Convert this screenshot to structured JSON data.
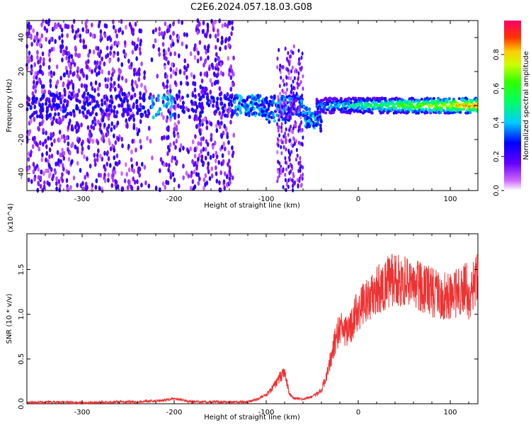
{
  "figure": {
    "title": "C2E6.2024.057.18.03.G08"
  },
  "chart_data": [
    {
      "type": "heatmap",
      "title": "",
      "xlabel": "Height of straight line (km)",
      "ylabel": "Frequency (Hz)",
      "xlim": [
        -360,
        130
      ],
      "ylim": [
        -50,
        50
      ],
      "xticks": [
        -300,
        -200,
        -100,
        0,
        100
      ],
      "yticks": [
        -40,
        -20,
        0,
        20,
        40
      ],
      "xtick_labels": [
        "-300",
        "-200",
        "-100",
        "0",
        "100"
      ],
      "ytick_labels": [
        "-40",
        "-20",
        "0",
        "20",
        "40"
      ],
      "colorbar": {
        "label": "Normalized spectral amplitude",
        "range": [
          0,
          1
        ],
        "ticks": [
          0.0,
          0.2,
          0.4,
          0.6,
          0.8
        ],
        "tick_labels": [
          "0.0",
          "0.2",
          "0.4",
          "0.6",
          "0.8"
        ],
        "colormap": "rainbow (white-purple-blue-cyan-green-yellow-red-magenta)"
      },
      "regions": [
        {
          "x": [
            -360,
            -135
          ],
          "description": "broadband noise, amplitude ~0.1-0.25 across all frequencies; narrow band ~0.4 near 0 Hz at x≈-320, -220 to -205"
        },
        {
          "x": [
            -135,
            -105
          ],
          "freq": [
            -8,
            8
          ],
          "amplitude": 0.3
        },
        {
          "x": [
            -105,
            -85
          ],
          "freq": [
            -10,
            10
          ],
          "amplitude": 0.4
        },
        {
          "x": [
            -85,
            -60
          ],
          "freq": [
            -50,
            30
          ],
          "amplitude": 0.25
        },
        {
          "x": [
            -60,
            -40
          ],
          "freq": [
            -15,
            5
          ],
          "amplitude": 0.4
        },
        {
          "x": [
            -40,
            130
          ],
          "freq": [
            -5,
            5
          ],
          "center_amplitude": [
            0.5,
            1.0
          ]
        }
      ]
    },
    {
      "type": "line",
      "title": "",
      "xlabel": "Height of straight line (km)",
      "ylabel": "SNR (10 * v/v)",
      "y_multiplier": "(x10^4)",
      "xlim": [
        -360,
        130
      ],
      "ylim": [
        0,
        1.9
      ],
      "xticks": [
        -300,
        -200,
        -100,
        0,
        100
      ],
      "yticks": [
        0.0,
        0.5,
        1.0,
        1.5
      ],
      "xtick_labels": [
        "-300",
        "-200",
        "-100",
        "0",
        "100"
      ],
      "ytick_labels": [
        "0.0",
        "0.5",
        "1.0",
        "1.5"
      ],
      "series": [
        {
          "color": "#ee3333",
          "x": [
            -360,
            -330,
            -300,
            -270,
            -240,
            -210,
            -200,
            -180,
            -150,
            -120,
            -110,
            -100,
            -95,
            -90,
            -85,
            -80,
            -75,
            -70,
            -60,
            -50,
            -40,
            -35,
            -30,
            -25,
            -20,
            -15,
            -10,
            -5,
            0,
            10,
            20,
            30,
            40,
            50,
            60,
            70,
            80,
            90,
            100,
            110,
            118,
            120,
            125,
            130
          ],
          "y": [
            0.01,
            0.02,
            0.01,
            0.02,
            0.02,
            0.04,
            0.06,
            0.02,
            0.02,
            0.02,
            0.05,
            0.1,
            0.15,
            0.22,
            0.3,
            0.35,
            0.12,
            0.06,
            0.05,
            0.08,
            0.15,
            0.3,
            0.5,
            0.7,
            0.85,
            0.8,
            0.8,
            0.95,
            1.05,
            1.15,
            1.25,
            1.35,
            1.38,
            1.35,
            1.32,
            1.3,
            1.25,
            1.2,
            1.2,
            1.25,
            1.3,
            1.1,
            1.35,
            1.4
          ]
        }
      ]
    }
  ]
}
